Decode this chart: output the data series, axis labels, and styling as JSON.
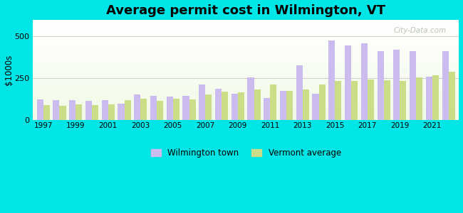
{
  "title": "Average permit cost in Wilmington, VT",
  "ylabel": "$1000s",
  "background_outer": "#00e5e5",
  "years": [
    1997,
    1998,
    1999,
    2000,
    2001,
    2002,
    2003,
    2004,
    2005,
    2006,
    2007,
    2008,
    2009,
    2010,
    2011,
    2012,
    2013,
    2014,
    2015,
    2016,
    2017,
    2018,
    2019,
    2020,
    2021,
    2022
  ],
  "wilmington": [
    125,
    120,
    120,
    115,
    120,
    100,
    155,
    145,
    140,
    145,
    215,
    190,
    160,
    255,
    135,
    175,
    330,
    160,
    475,
    445,
    460,
    415,
    420,
    415,
    260,
    415
  ],
  "vermont": [
    90,
    85,
    95,
    90,
    95,
    120,
    130,
    115,
    130,
    125,
    155,
    170,
    165,
    185,
    215,
    175,
    185,
    215,
    235,
    235,
    245,
    240,
    235,
    255,
    270,
    290
  ],
  "bar_color_wilmington": "#ccbbee",
  "bar_color_vermont": "#ccdd88",
  "ylim": [
    0,
    600
  ],
  "yticks": [
    0,
    250,
    500
  ],
  "grid_color": "#cccccc",
  "title_fontsize": 13,
  "watermark": "City-Data.com"
}
